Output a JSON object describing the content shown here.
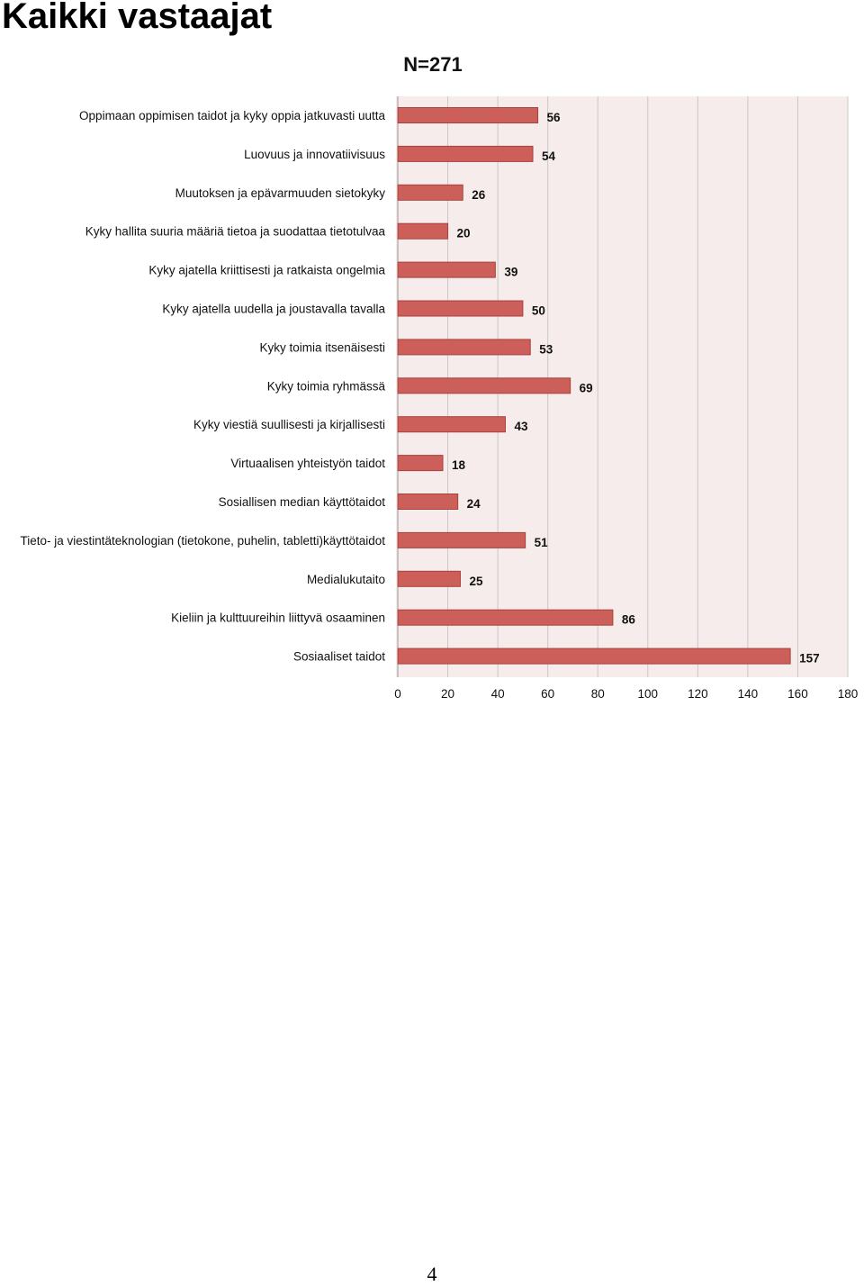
{
  "page": {
    "title": "Kaikki vastaajat",
    "page_number": "4"
  },
  "colors": {
    "bar_fill": "#cd5f5a",
    "bar_stroke": "#a8413c",
    "plot_background": "#f6eceb",
    "grid": "#c8c8c8"
  },
  "chart_data": {
    "type": "bar",
    "orientation": "horizontal",
    "title": "N=271",
    "categories": [
      "Oppimaan oppimisen taidot  ja kyky oppia jatkuvasti uutta",
      "Luovuus ja innovatiivisuus",
      "Muutoksen ja epävarmuuden sietokyky",
      "Kyky hallita suuria määriä tietoa ja suodattaa tietotulvaa",
      "Kyky ajatella kriittisesti ja ratkaista ongelmia",
      "Kyky ajatella uudella ja joustavalla tavalla",
      "Kyky toimia itsenäisesti",
      "Kyky toimia ryhmässä",
      "Kyky viestiä suullisesti ja kirjallisesti",
      "Virtuaalisen yhteistyön taidot",
      "Sosiallisen median käyttötaidot",
      "Tieto- ja viestintäteknologian (tietokone, puhelin, tabletti)käyttötaidot",
      "Medialukutaito",
      "Kieliin ja kulttuureihin liittyvä osaaminen",
      "Sosiaaliset taidot"
    ],
    "values": [
      56,
      54,
      26,
      20,
      39,
      50,
      53,
      69,
      43,
      18,
      24,
      51,
      25,
      86,
      157
    ],
    "xlim": [
      0,
      180
    ],
    "x_ticks": [
      0,
      20,
      40,
      60,
      80,
      100,
      120,
      140,
      160,
      180
    ],
    "grid": true,
    "xlabel": "",
    "ylabel": ""
  }
}
